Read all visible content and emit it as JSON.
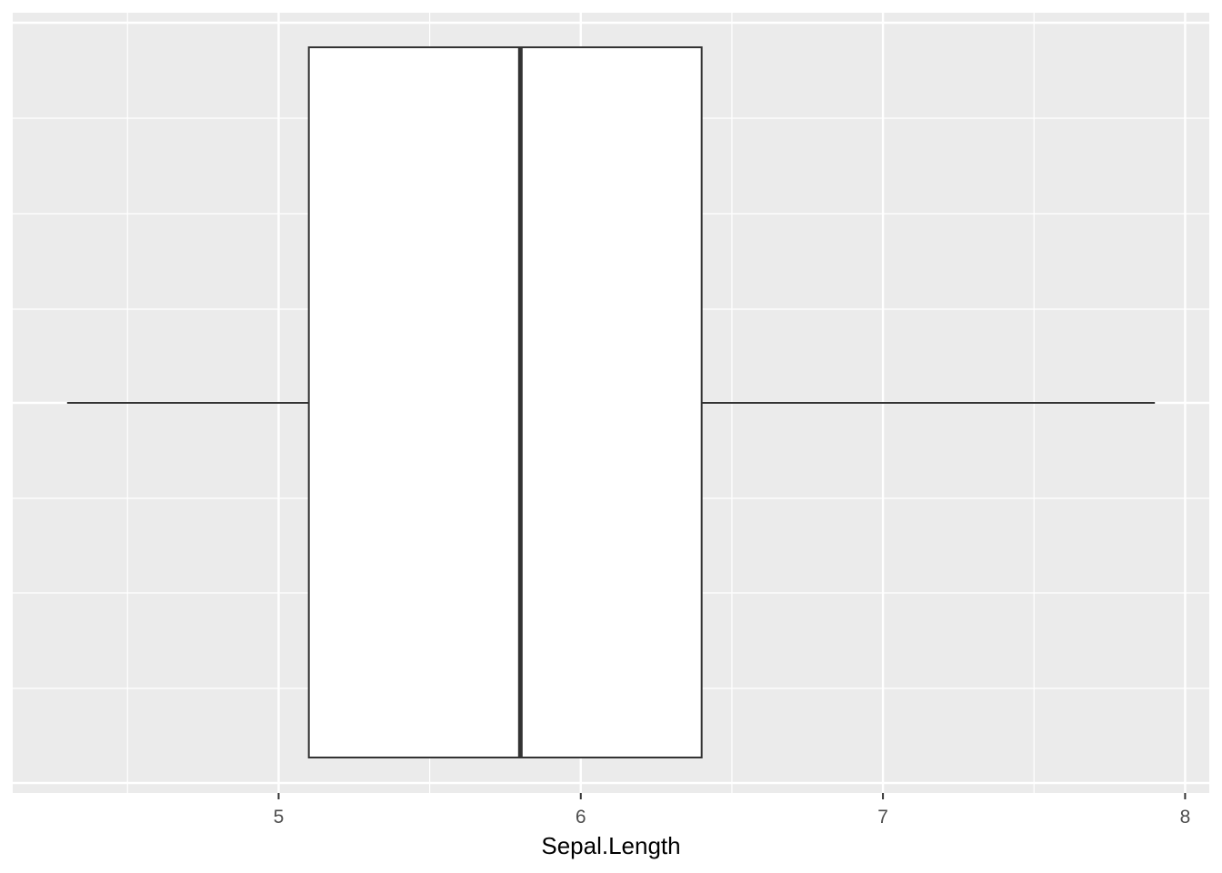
{
  "chart_data": {
    "type": "boxplot",
    "orientation": "horizontal",
    "xlabel": "Sepal.Length",
    "ylabel": "",
    "title": "",
    "xlim": [
      4.12,
      8.08
    ],
    "x_ticks": [
      5,
      6,
      7,
      8
    ],
    "x_minor_ticks": [
      4.5,
      5.5,
      6.5,
      7.5
    ],
    "grid": true,
    "box": {
      "min": 4.3,
      "q1": 5.1,
      "median": 5.8,
      "q3": 6.4,
      "max": 7.9
    },
    "colors": {
      "panel_background": "#ebebeb",
      "grid_major": "#ffffff",
      "box_fill": "#ffffff",
      "box_stroke": "#333333",
      "tick_label": "#4d4d4d"
    }
  }
}
